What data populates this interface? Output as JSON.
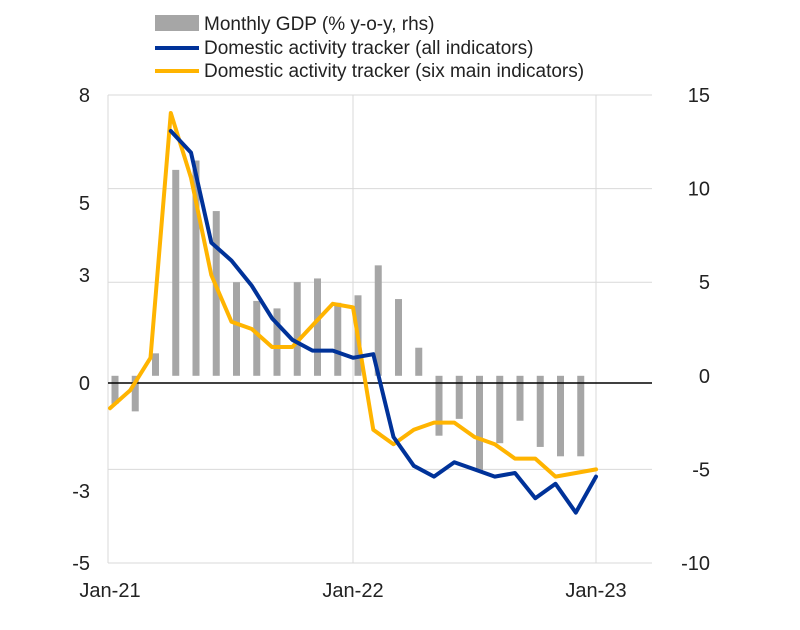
{
  "chart_data": {
    "type": "bar+line",
    "title": "",
    "months": [
      "Jan-21",
      "Feb-21",
      "Mar-21",
      "Apr-21",
      "May-21",
      "Jun-21",
      "Jul-21",
      "Aug-21",
      "Sep-21",
      "Oct-21",
      "Nov-21",
      "Dec-21",
      "Jan-22",
      "Feb-22",
      "Mar-22",
      "Apr-22",
      "May-22",
      "Jun-22",
      "Jul-22",
      "Aug-22",
      "Sep-22",
      "Oct-22",
      "Nov-22",
      "Dec-22",
      "Jan-23"
    ],
    "x_tick_labels": [
      "Jan-21",
      "Jan-22",
      "Jan-23"
    ],
    "left_axis": {
      "min": -5,
      "max": 8,
      "ticks": [
        -5,
        -3,
        0,
        3,
        5,
        8
      ],
      "tick_labels": [
        "-5",
        "-3",
        "0",
        "3",
        "5",
        "8"
      ]
    },
    "right_axis": {
      "min": -10,
      "max": 15,
      "ticks": [
        -10,
        -5,
        0,
        5,
        10,
        15
      ],
      "tick_labels": [
        "-10",
        "-5",
        "0",
        "5",
        "10",
        "15"
      ],
      "label": "rhs"
    },
    "series": [
      {
        "name": "Monthly GDP (% y-o-y, rhs)",
        "type": "bar",
        "axis": "right",
        "color": "#a6a6a6",
        "values": [
          -1.5,
          -1.9,
          1.2,
          11.0,
          11.5,
          8.8,
          5.0,
          4.0,
          3.6,
          5.0,
          5.2,
          3.9,
          4.3,
          5.9,
          4.1,
          1.5,
          -3.2,
          -2.3,
          -5.1,
          -3.6,
          -2.4,
          -3.8,
          -4.3,
          -4.3,
          null
        ]
      },
      {
        "name": "Domestic activity tracker (all indicators)",
        "type": "line",
        "axis": "left",
        "color": "#003299",
        "values": [
          null,
          null,
          null,
          7.0,
          6.4,
          3.9,
          3.4,
          2.7,
          1.8,
          1.2,
          0.9,
          0.9,
          0.7,
          0.8,
          -1.5,
          -2.3,
          -2.6,
          -2.2,
          -2.4,
          -2.6,
          -2.5,
          -3.2,
          -2.8,
          -3.6,
          -2.6
        ]
      },
      {
        "name": "Domestic activity tracker (six main indicators)",
        "type": "line",
        "axis": "left",
        "color": "#ffb400",
        "values": [
          -0.7,
          -0.2,
          0.7,
          7.5,
          5.7,
          3.0,
          1.7,
          1.5,
          1.0,
          1.0,
          1.6,
          2.2,
          2.1,
          -1.3,
          -1.7,
          -1.3,
          -1.1,
          -1.1,
          -1.5,
          -1.7,
          -2.1,
          -2.1,
          -2.6,
          -2.5,
          -2.4
        ]
      }
    ],
    "legend": {
      "position": "top-left",
      "entries": [
        "Monthly GDP (% y-o-y, rhs)",
        "Domestic activity tracker (all indicators)",
        "Domestic activity tracker (six main indicators)"
      ]
    },
    "gridlines": {
      "horizontal": true,
      "vertical_at": [
        "Jan-22",
        "Jan-23"
      ],
      "color": "#d9d9d9"
    },
    "zero_line_color": "#000000"
  }
}
